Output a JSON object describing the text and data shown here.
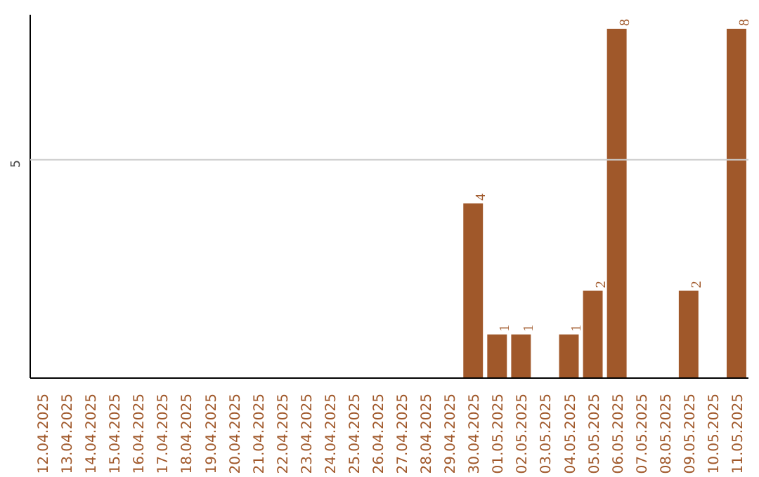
{
  "chart_data": {
    "type": "bar",
    "categories": [
      "12.04.2025",
      "13.04.2025",
      "14.04.2025",
      "15.04.2025",
      "16.04.2025",
      "17.04.2025",
      "18.04.2025",
      "19.04.2025",
      "20.04.2025",
      "21.04.2025",
      "22.04.2025",
      "23.04.2025",
      "24.04.2025",
      "25.04.2025",
      "26.04.2025",
      "27.04.2025",
      "28.04.2025",
      "29.04.2025",
      "30.04.2025",
      "01.05.2025",
      "02.05.2025",
      "03.05.2025",
      "04.05.2025",
      "05.05.2025",
      "06.05.2025",
      "07.05.2025",
      "08.05.2025",
      "09.05.2025",
      "10.05.2025",
      "11.05.2025"
    ],
    "values": [
      null,
      null,
      null,
      null,
      null,
      null,
      null,
      null,
      null,
      null,
      null,
      null,
      null,
      null,
      null,
      null,
      null,
      null,
      4,
      1,
      1,
      null,
      1,
      2,
      8,
      null,
      null,
      2,
      null,
      8
    ],
    "value_labels": [
      null,
      null,
      null,
      null,
      null,
      null,
      null,
      null,
      null,
      null,
      null,
      null,
      null,
      null,
      null,
      null,
      null,
      null,
      "4",
      "1",
      "1",
      null,
      "1",
      "2",
      "8",
      null,
      null,
      "2",
      null,
      "8"
    ],
    "color": "#a0582a",
    "ref_lines": [
      {
        "axis": "y",
        "value": 5,
        "label": "5",
        "color": "#cccccc"
      }
    ]
  }
}
